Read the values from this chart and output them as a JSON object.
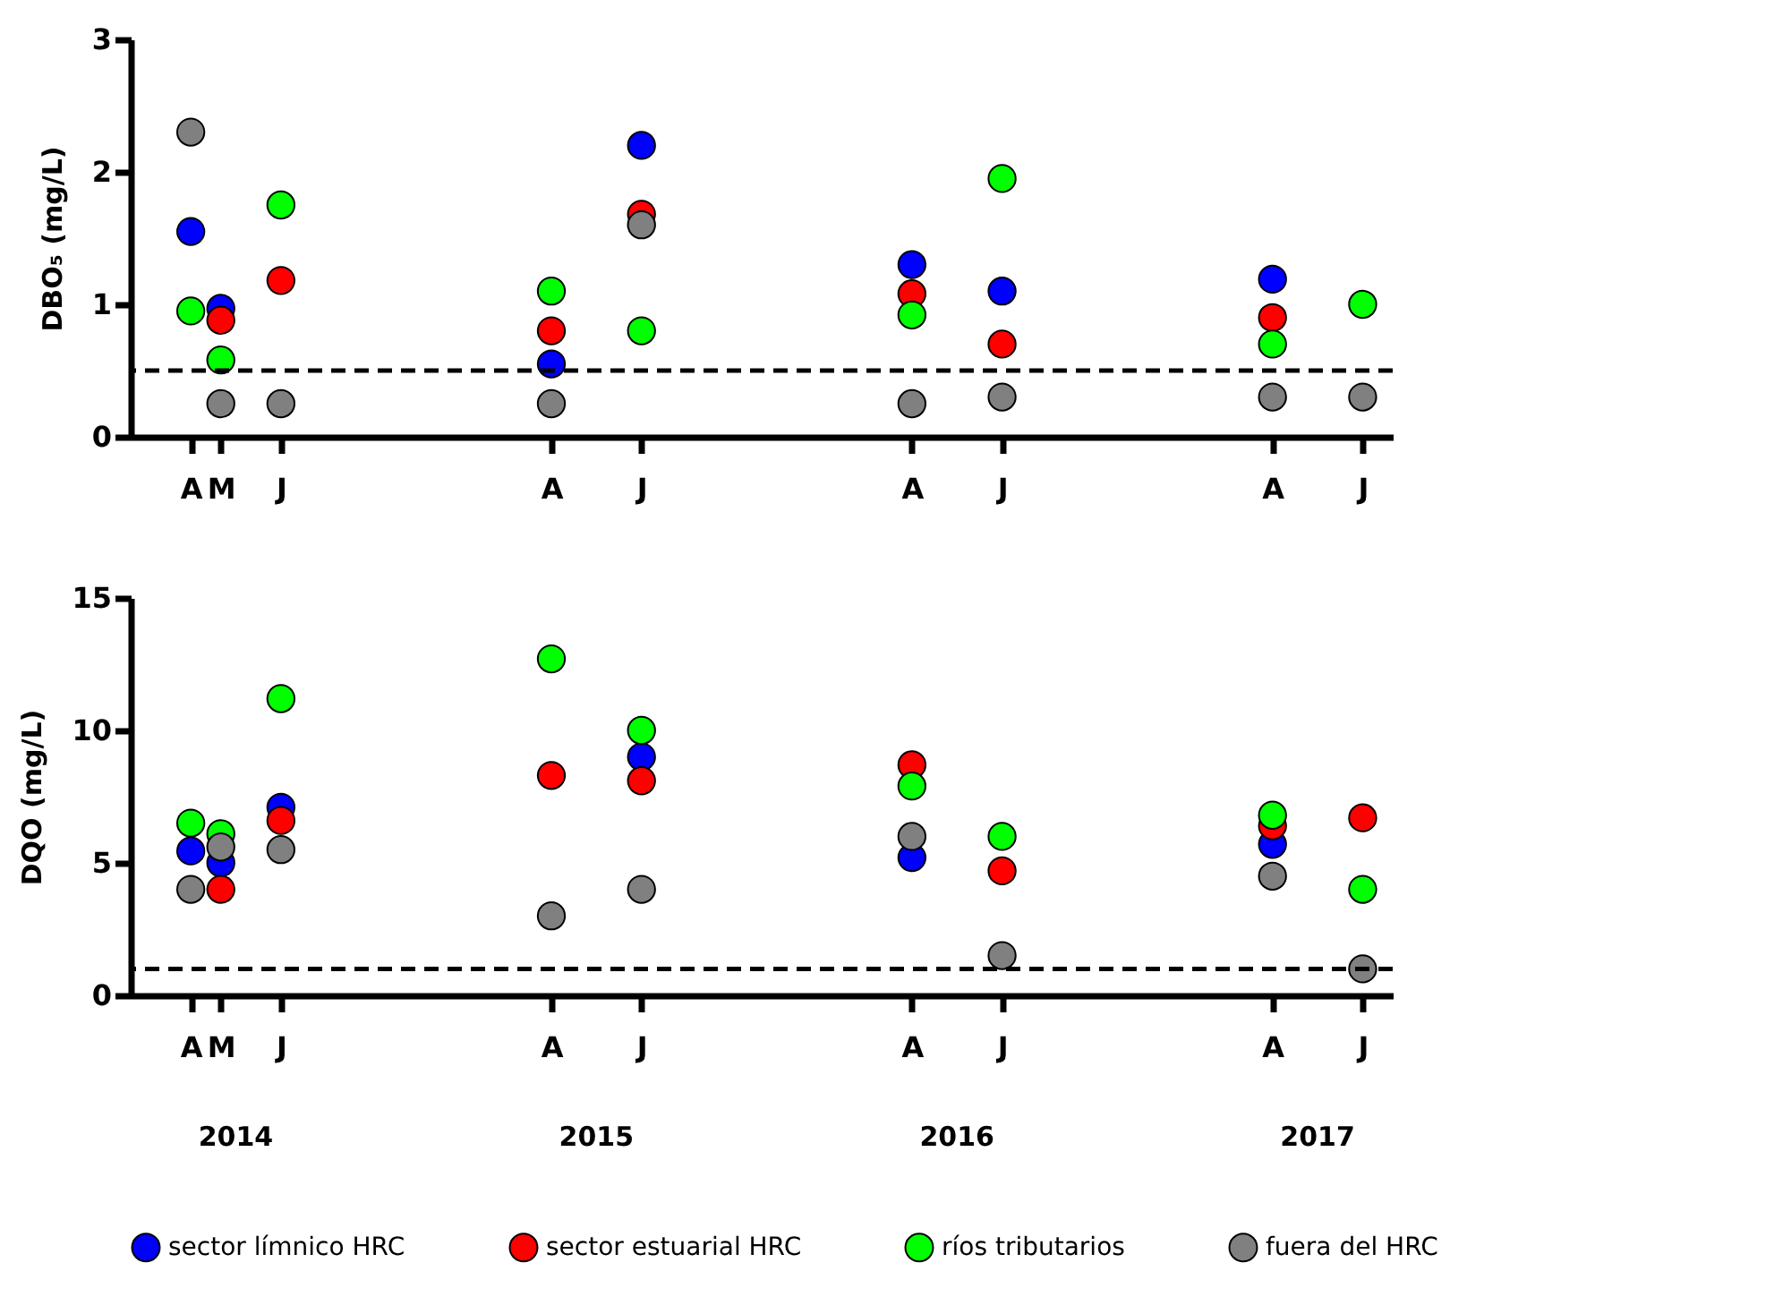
{
  "chart_data": [
    {
      "type": "scatter",
      "ylabel": "DBO₅ (mg/L)",
      "marker": "circle",
      "grid": false,
      "legend": false,
      "categories": [
        null,
        null,
        "A",
        "M",
        null,
        "J",
        null,
        null,
        null,
        null,
        null,
        null,
        null,
        null,
        "A",
        null,
        null,
        "J",
        null,
        null,
        null,
        null,
        null,
        null,
        null,
        null,
        "A",
        null,
        null,
        "J",
        null,
        null,
        null,
        null,
        null,
        null,
        null,
        null,
        "A",
        null,
        null,
        "J",
        null
      ],
      "ylim": [
        0,
        3
      ],
      "yticks": [
        0,
        1,
        2,
        3
      ],
      "ref_lines": [
        {
          "axis": "y",
          "value": 0.5,
          "color": "#000000",
          "line_style": "dashed"
        }
      ],
      "series": [
        {
          "color": "#0000ff",
          "values": [
            null,
            null,
            1.55,
            0.97,
            null,
            null,
            null,
            null,
            null,
            null,
            null,
            null,
            null,
            null,
            0.55,
            null,
            null,
            2.2,
            null,
            null,
            null,
            null,
            null,
            null,
            null,
            null,
            1.3,
            null,
            null,
            1.1,
            null,
            null,
            null,
            null,
            null,
            null,
            null,
            null,
            1.19,
            null,
            null,
            null,
            null
          ]
        },
        {
          "color": "#ff0000",
          "values": [
            null,
            null,
            null,
            0.88,
            null,
            1.18,
            null,
            null,
            null,
            null,
            null,
            null,
            null,
            null,
            0.8,
            null,
            null,
            1.68,
            null,
            null,
            null,
            null,
            null,
            null,
            null,
            null,
            1.08,
            null,
            null,
            0.7,
            null,
            null,
            null,
            null,
            null,
            null,
            null,
            null,
            0.9,
            null,
            null,
            null,
            null
          ]
        },
        {
          "color": "#00ff00",
          "values": [
            null,
            null,
            0.95,
            0.58,
            null,
            1.75,
            null,
            null,
            null,
            null,
            null,
            null,
            null,
            null,
            1.1,
            null,
            null,
            0.8,
            null,
            null,
            null,
            null,
            null,
            null,
            null,
            null,
            0.92,
            null,
            null,
            1.95,
            null,
            null,
            null,
            null,
            null,
            null,
            null,
            null,
            0.7,
            null,
            null,
            1.0,
            null
          ]
        },
        {
          "color": "#808080",
          "values": [
            null,
            null,
            2.3,
            0.25,
            null,
            0.25,
            null,
            null,
            null,
            null,
            null,
            null,
            null,
            null,
            0.25,
            null,
            null,
            1.6,
            null,
            null,
            null,
            null,
            null,
            null,
            null,
            null,
            0.25,
            null,
            null,
            0.3,
            null,
            null,
            null,
            null,
            null,
            null,
            null,
            null,
            0.3,
            null,
            null,
            0.3,
            null
          ]
        }
      ]
    },
    {
      "type": "scatter",
      "ylabel": "DQO (mg/L)",
      "marker": "circle",
      "grid": false,
      "legend": "bottom",
      "categories": [
        null,
        null,
        "A",
        "M",
        null,
        "J",
        null,
        null,
        null,
        null,
        null,
        null,
        null,
        null,
        "A",
        null,
        null,
        "J",
        null,
        null,
        null,
        null,
        null,
        null,
        null,
        null,
        "A",
        null,
        null,
        "J",
        null,
        null,
        null,
        null,
        null,
        null,
        null,
        null,
        "A",
        null,
        null,
        "J",
        null
      ],
      "ylim": [
        0,
        15
      ],
      "yticks": [
        0,
        5,
        10,
        15
      ],
      "ref_lines": [
        {
          "axis": "y",
          "value": 1.0,
          "color": "#000000",
          "line_style": "dashed"
        }
      ],
      "annotations": [
        "2014",
        "2015",
        "2016",
        "2017"
      ],
      "series": [
        {
          "name": "sector límnico HRC",
          "color": "#0000ff",
          "values": [
            null,
            null,
            5.45,
            5.0,
            null,
            7.1,
            null,
            null,
            null,
            null,
            null,
            null,
            null,
            null,
            null,
            null,
            null,
            9.0,
            null,
            null,
            null,
            null,
            null,
            null,
            null,
            null,
            5.2,
            null,
            null,
            null,
            null,
            null,
            null,
            null,
            null,
            null,
            null,
            null,
            5.7,
            null,
            null,
            null,
            null
          ]
        },
        {
          "name": "sector estuarial HRC",
          "color": "#ff0000",
          "values": [
            null,
            null,
            null,
            4.0,
            null,
            6.6,
            null,
            null,
            null,
            null,
            null,
            null,
            null,
            null,
            8.3,
            null,
            null,
            8.1,
            null,
            null,
            null,
            null,
            null,
            null,
            null,
            null,
            8.7,
            null,
            null,
            4.7,
            null,
            null,
            null,
            null,
            null,
            null,
            null,
            null,
            6.4,
            null,
            null,
            6.7,
            null
          ]
        },
        {
          "name": "ríos tributarios",
          "color": "#00ff00",
          "values": [
            null,
            null,
            6.5,
            6.1,
            null,
            11.2,
            null,
            null,
            null,
            null,
            null,
            null,
            null,
            null,
            12.7,
            null,
            null,
            10.0,
            null,
            null,
            null,
            null,
            null,
            null,
            null,
            null,
            7.9,
            null,
            null,
            6.0,
            null,
            null,
            null,
            null,
            null,
            null,
            null,
            null,
            6.8,
            null,
            null,
            4.0,
            null
          ]
        },
        {
          "name": "fuera del HRC",
          "color": "#808080",
          "values": [
            null,
            null,
            4.0,
            5.6,
            null,
            5.5,
            null,
            null,
            null,
            null,
            null,
            null,
            null,
            null,
            3.0,
            null,
            null,
            4.0,
            null,
            null,
            null,
            null,
            null,
            null,
            null,
            null,
            6.0,
            null,
            null,
            1.5,
            null,
            null,
            null,
            null,
            null,
            null,
            null,
            null,
            4.5,
            null,
            null,
            1.0,
            null
          ]
        }
      ]
    }
  ]
}
